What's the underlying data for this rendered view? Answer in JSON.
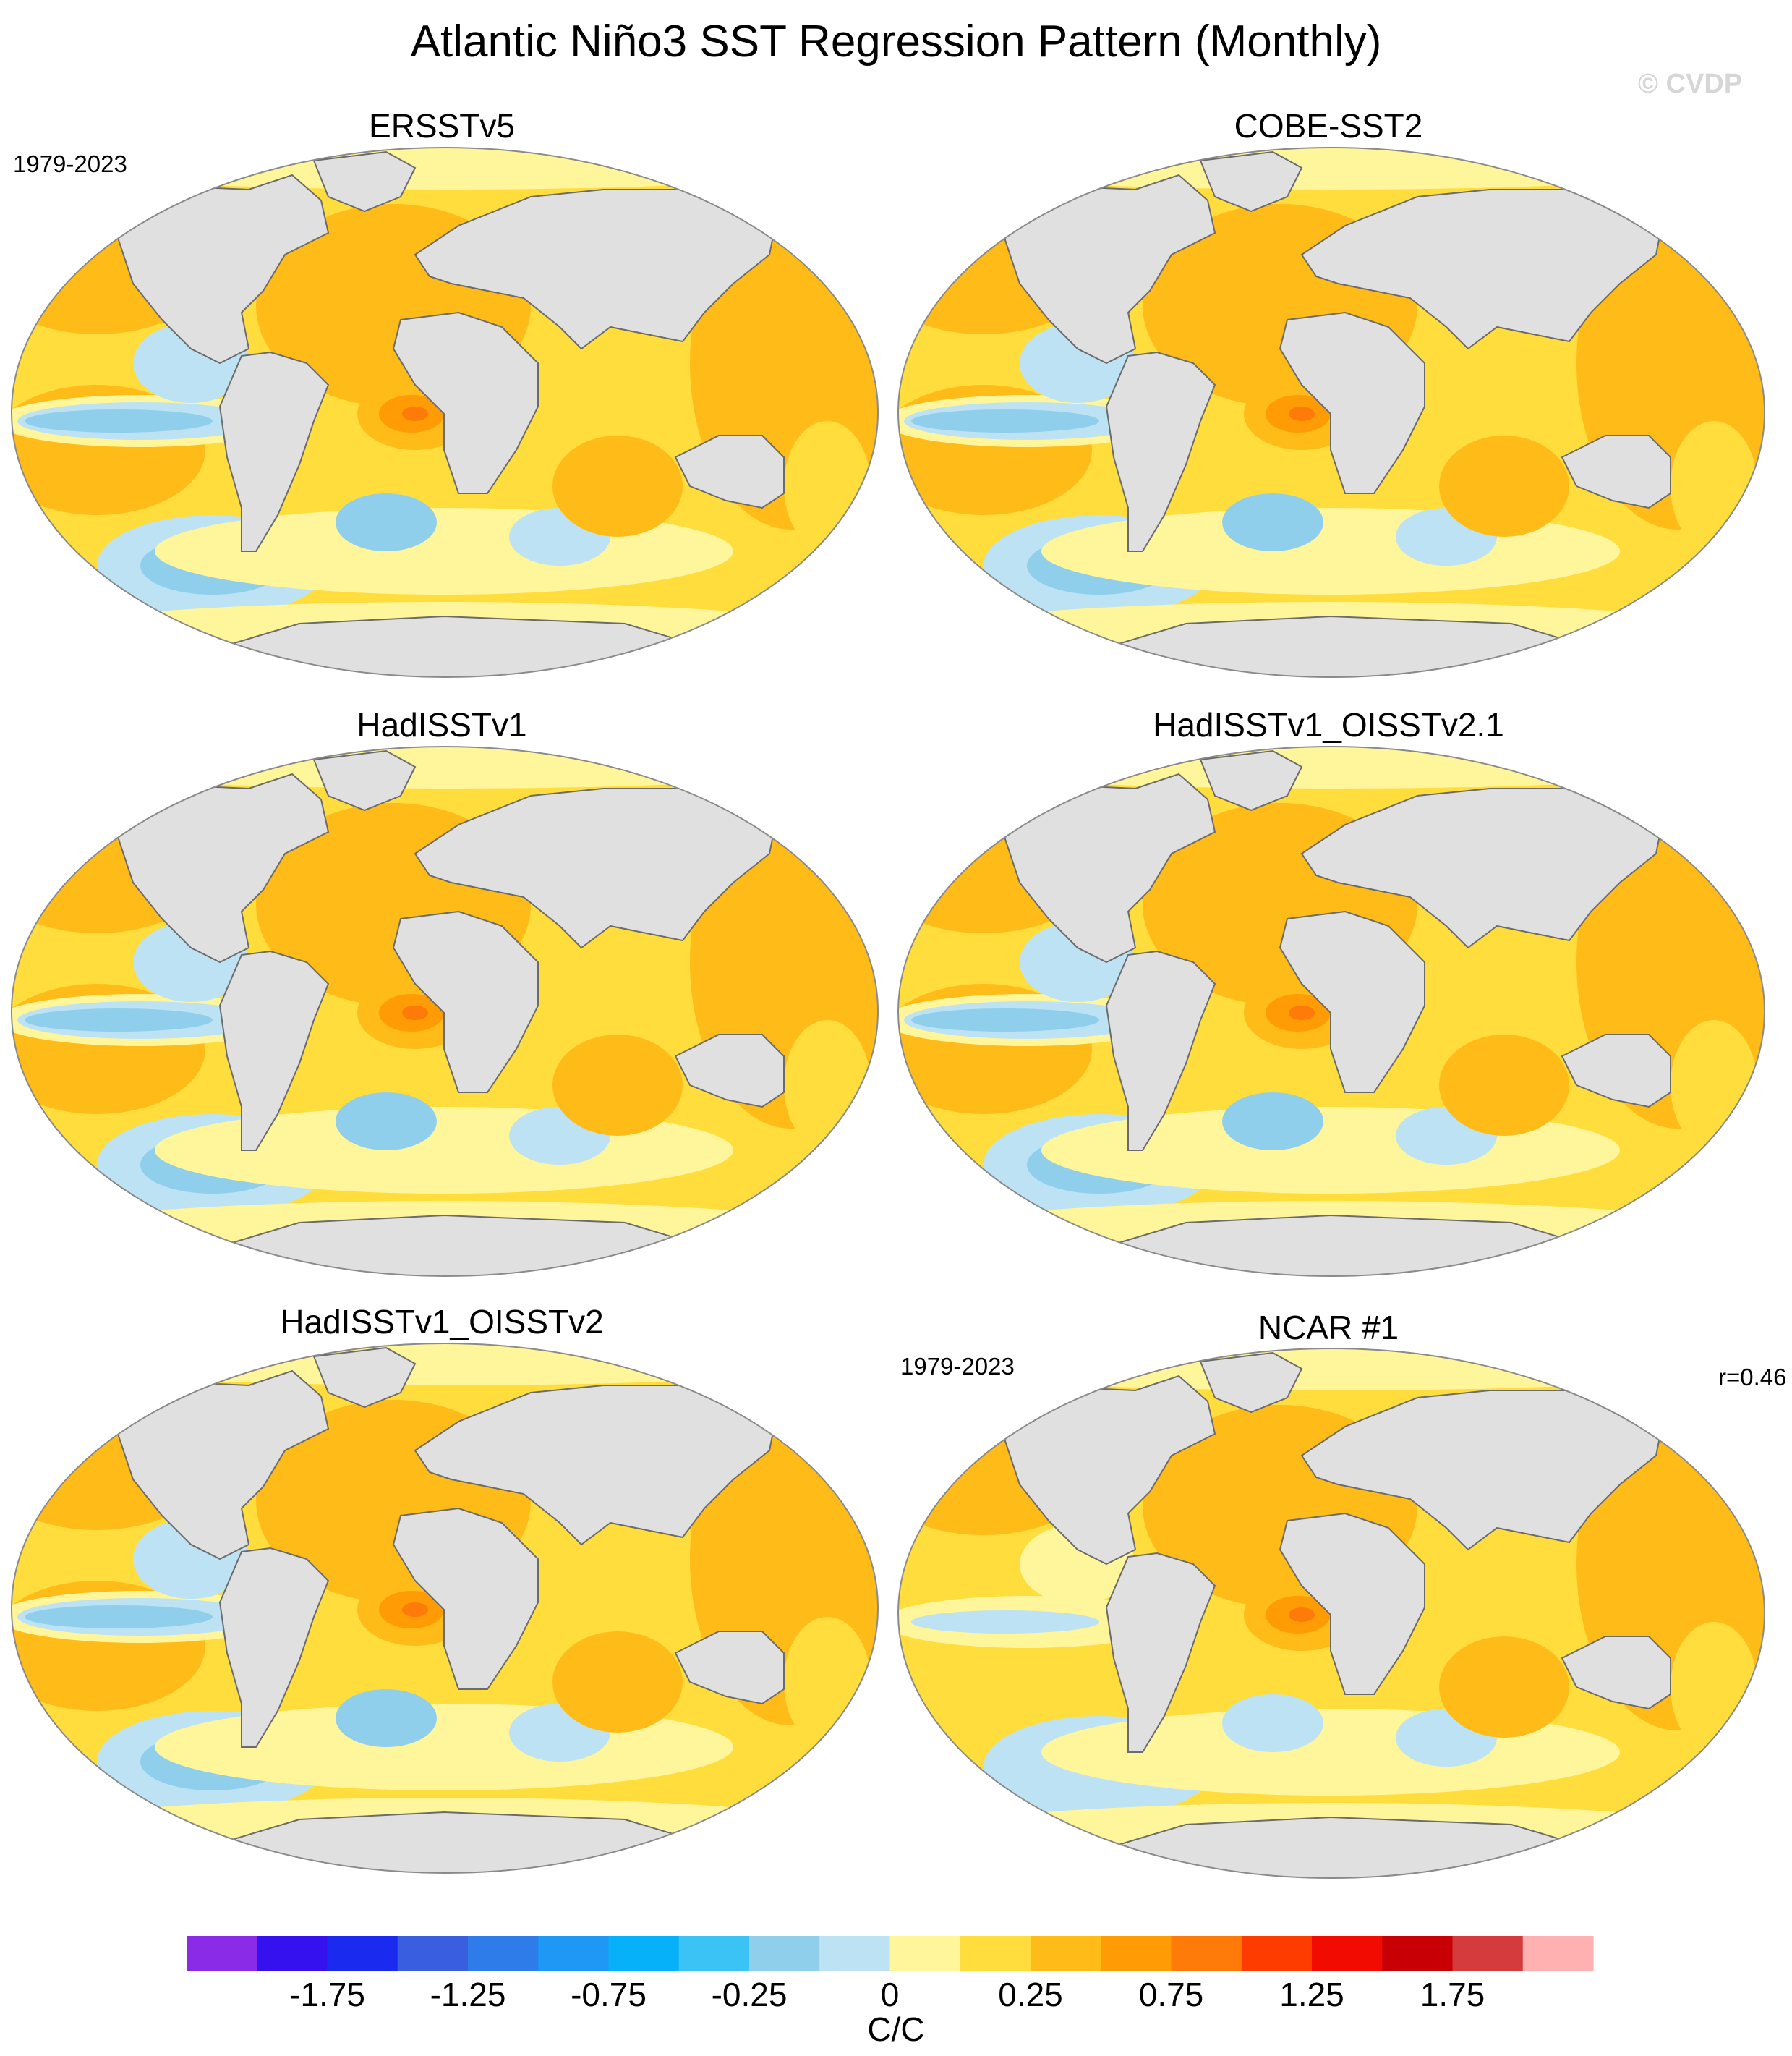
{
  "title": "Atlantic Niño3 SST Regression Pattern (Monthly)",
  "watermark": "© CVDP",
  "chart_data": {
    "type": "heatmap",
    "projection": "Robinson (global)",
    "panels": [
      {
        "name": "ERSSTv5",
        "period": "1979-2023",
        "correlation": ""
      },
      {
        "name": "COBE-SST2",
        "period": "",
        "correlation": ""
      },
      {
        "name": "HadISSTv1",
        "period": "",
        "correlation": ""
      },
      {
        "name": "HadISSTv1_OISSTv2.1",
        "period": "",
        "correlation": ""
      },
      {
        "name": "HadISSTv1_OISSTv2",
        "period": "",
        "correlation": ""
      },
      {
        "name": "NCAR #1",
        "period": "1979-2023",
        "correlation": "r=0.46"
      }
    ],
    "colorbar": {
      "units": "C/C",
      "levels": [
        -2,
        -1.75,
        -1.5,
        -1.25,
        -1,
        -0.75,
        -0.5,
        -0.25,
        0,
        0.25,
        0.5,
        0.75,
        1,
        1.25,
        1.5,
        1.75,
        2
      ],
      "tick_labels": [
        "-1.75",
        "-1.25",
        "-0.75",
        "-0.25",
        "0",
        "0.25",
        "0.75",
        "1.25",
        "1.75"
      ],
      "colors": [
        "#8a2be8",
        "#3611f0",
        "#1a2bef",
        "#3a5ee0",
        "#2e7bea",
        "#1f98f5",
        "#06b1fa",
        "#3cc3f6",
        "#90cfec",
        "#bde2f4",
        "#fff59a",
        "#ffdd3c",
        "#ffbb18",
        "#ff9c05",
        "#ff7b09",
        "#ff3c00",
        "#f20b00",
        "#c80005",
        "#d53a3d",
        "#ffb0b0"
      ]
    },
    "pattern_summary": "positive tropical Atlantic maximum near Gulf of Guinea; negative tropical and southeast Pacific",
    "land_color": "#e0e0e0"
  }
}
